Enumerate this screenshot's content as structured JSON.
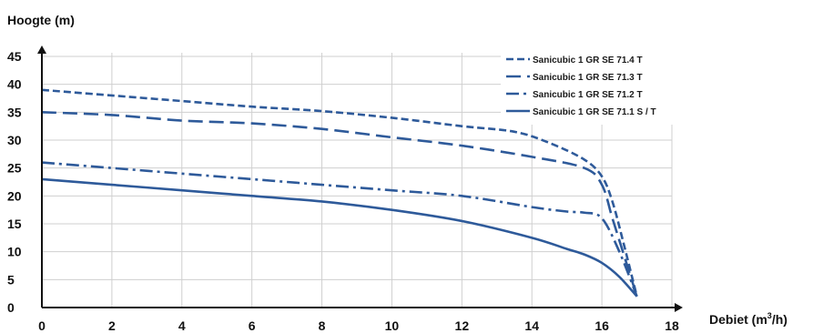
{
  "chart_data": {
    "type": "line",
    "ylabel": "Hoogte (m)",
    "xlabel_main": "Debiet (m",
    "xlabel_sup": "3",
    "xlabel_tail": "/h)",
    "xlim": [
      0,
      18
    ],
    "ylim": [
      0,
      45
    ],
    "x_ticks": [
      0,
      2,
      4,
      6,
      8,
      10,
      12,
      14,
      16,
      18
    ],
    "y_ticks": [
      0,
      5,
      10,
      15,
      20,
      25,
      30,
      35,
      40,
      45
    ],
    "grid": true,
    "legend_position": "top-right",
    "color": "#2e5a9a",
    "series": [
      {
        "name": "Sanicubic 1 GR SE 71.4 T",
        "style": "short-dash",
        "x": [
          0,
          2,
          4,
          6,
          8,
          10,
          12,
          13.5,
          14.5,
          15.5,
          16,
          16.3,
          16.6,
          17
        ],
        "y": [
          39,
          38,
          37,
          36,
          35.2,
          34,
          32.5,
          31.5,
          29.5,
          26.5,
          23.5,
          19,
          12,
          2
        ]
      },
      {
        "name": "Sanicubic 1 GR SE 71.3 T",
        "style": "long-dash",
        "x": [
          0,
          2,
          4,
          6,
          8,
          10,
          12,
          14,
          15.5,
          16,
          16.3,
          16.6,
          17
        ],
        "y": [
          35,
          34.5,
          33.5,
          33,
          32,
          30.5,
          29,
          27,
          25,
          22,
          16,
          10,
          2
        ]
      },
      {
        "name": "Sanicubic 1 GR SE 71.2 T",
        "style": "dash-dot",
        "x": [
          0,
          2,
          4,
          6,
          8,
          10,
          12,
          14,
          15,
          15.5,
          16,
          16.5,
          17
        ],
        "y": [
          26,
          25,
          24,
          23,
          22,
          21,
          20,
          18,
          17.2,
          17,
          16,
          10,
          2
        ]
      },
      {
        "name": "Sanicubic 1 GR SE 71.1 S / T",
        "style": "solid",
        "x": [
          0,
          2,
          4,
          6,
          8,
          10,
          12,
          14,
          15,
          15.5,
          16,
          16.5,
          17
        ],
        "y": [
          23,
          22,
          21,
          20,
          19,
          17.5,
          15.5,
          12.5,
          10.5,
          9.5,
          8,
          5.5,
          2
        ]
      }
    ]
  }
}
